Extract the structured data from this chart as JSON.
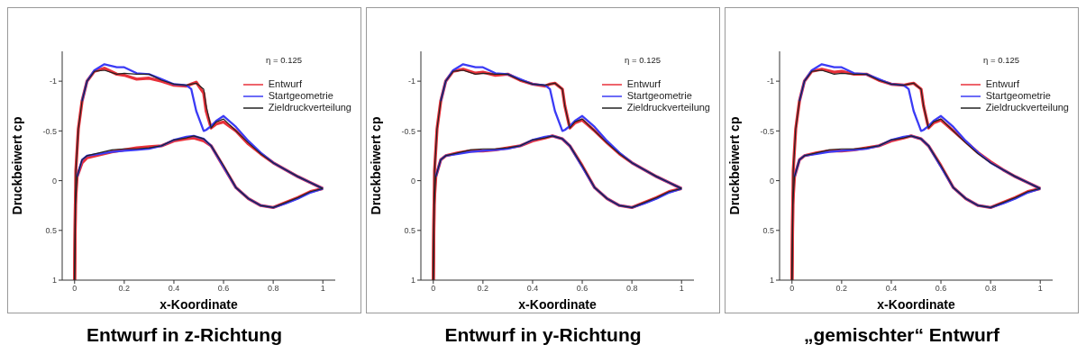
{
  "chart_data": [
    {
      "type": "line",
      "title": "Entwurf in z-Richtung",
      "xlabel": "x-Koordinate",
      "ylabel": "Druckbeiwert cp",
      "annotations": [
        "η = 0.125"
      ],
      "legend": "top right",
      "marker": "none",
      "line_style": "solid",
      "grid": false,
      "xlim": [
        -0.05,
        1.05
      ],
      "ylim": [
        1,
        -1.3
      ],
      "xticks": [
        0,
        0.2,
        0.4,
        0.6,
        0.8,
        1
      ],
      "yticks": [
        1,
        0.5,
        0,
        -0.5,
        -1
      ],
      "series": [
        {
          "name": "Entwurf",
          "color": "#e8313a",
          "x": [
            0,
            0.005,
            0.015,
            0.03,
            0.05,
            0.08,
            0.12,
            0.17,
            0.2,
            0.25,
            0.3,
            0.35,
            0.4,
            0.45,
            0.47,
            0.49,
            0.52,
            0.53,
            0.55,
            0.57,
            0.6,
            0.65,
            0.7,
            0.75,
            0.8,
            0.85,
            0.9,
            0.95,
            1
          ],
          "values": [
            1.0,
            -0.1,
            -0.52,
            -0.8,
            -1.0,
            -1.1,
            -1.13,
            -1.07,
            -1.06,
            -1.02,
            -1.03,
            -1.0,
            -0.96,
            -0.95,
            -0.97,
            -0.99,
            -0.88,
            -0.7,
            -0.53,
            -0.57,
            -0.59,
            -0.5,
            -0.37,
            -0.27,
            -0.18,
            -0.11,
            -0.04,
            0.02,
            0.08
          ]
        },
        {
          "name": "Startgeometrie",
          "color": "#3b3bf5",
          "x": [
            0.03,
            0.05,
            0.08,
            0.12,
            0.17,
            0.2,
            0.25,
            0.3,
            0.35,
            0.4,
            0.45,
            0.47,
            0.49,
            0.52,
            0.53,
            0.55,
            0.57,
            0.6,
            0.65,
            0.7,
            0.75,
            0.8,
            0.85,
            0.9,
            0.95,
            1
          ],
          "values": [
            -0.8,
            -1.0,
            -1.11,
            -1.17,
            -1.14,
            -1.14,
            -1.08,
            -1.07,
            -1.02,
            -0.97,
            -0.96,
            -0.92,
            -0.7,
            -0.5,
            -0.51,
            -0.55,
            -0.6,
            -0.65,
            -0.54,
            -0.4,
            -0.28,
            -0.18,
            -0.11,
            -0.04,
            0.02,
            0.08
          ]
        },
        {
          "name": "Zieldruckverteilung",
          "color": "#222222",
          "x": [
            0,
            0.005,
            0.015,
            0.03,
            0.05,
            0.08,
            0.12,
            0.17,
            0.2,
            0.25,
            0.3,
            0.35,
            0.4,
            0.45,
            0.47,
            0.49,
            0.52,
            0.53,
            0.55,
            0.57,
            0.6,
            0.65,
            0.7,
            0.75,
            0.8,
            0.85,
            0.9,
            0.95,
            1
          ],
          "values": [
            1.0,
            -0.1,
            -0.52,
            -0.8,
            -1.0,
            -1.1,
            -1.11,
            -1.07,
            -1.08,
            -1.07,
            -1.07,
            -1.01,
            -0.97,
            -0.96,
            -0.97,
            -0.98,
            -0.92,
            -0.75,
            -0.53,
            -0.59,
            -0.62,
            -0.5,
            -0.38,
            -0.27,
            -0.18,
            -0.11,
            -0.04,
            0.02,
            0.08
          ]
        },
        {
          "color": "#e8313a",
          "x": [
            0,
            0.003,
            0.01,
            0.03,
            0.05,
            0.1,
            0.15,
            0.2,
            0.25,
            0.3,
            0.35,
            0.4,
            0.45,
            0.48,
            0.52,
            0.55,
            0.6,
            0.65,
            0.7,
            0.75,
            0.8,
            0.85,
            0.9,
            0.95,
            1
          ],
          "values": [
            1.0,
            0.24,
            -0.04,
            -0.18,
            -0.23,
            -0.26,
            -0.29,
            -0.31,
            -0.33,
            -0.34,
            -0.35,
            -0.4,
            -0.42,
            -0.43,
            -0.4,
            -0.35,
            -0.14,
            0.07,
            0.18,
            0.25,
            0.27,
            0.22,
            0.17,
            0.11,
            0.08
          ]
        },
        {
          "color": "#3b3bf5",
          "x": [
            0.01,
            0.03,
            0.05,
            0.1,
            0.15,
            0.2,
            0.25,
            0.3,
            0.35,
            0.4,
            0.45,
            0.48,
            0.52,
            0.55,
            0.6,
            0.65,
            0.7,
            0.75,
            0.8,
            0.85,
            0.9,
            0.95,
            1
          ],
          "values": [
            -0.04,
            -0.21,
            -0.25,
            -0.27,
            -0.29,
            -0.3,
            -0.31,
            -0.32,
            -0.35,
            -0.41,
            -0.44,
            -0.45,
            -0.42,
            -0.35,
            -0.14,
            0.07,
            0.18,
            0.25,
            0.27,
            0.23,
            0.18,
            0.12,
            0.08
          ]
        },
        {
          "color": "#222222",
          "x": [
            0,
            0.003,
            0.01,
            0.03,
            0.05,
            0.1,
            0.15,
            0.2,
            0.25,
            0.3,
            0.35,
            0.4,
            0.45,
            0.48,
            0.52,
            0.55,
            0.6,
            0.65,
            0.7,
            0.75,
            0.8,
            0.85,
            0.9,
            0.95,
            1
          ],
          "values": [
            1.0,
            0.24,
            -0.04,
            -0.21,
            -0.25,
            -0.28,
            -0.31,
            -0.32,
            -0.32,
            -0.33,
            -0.35,
            -0.41,
            -0.43,
            -0.45,
            -0.42,
            -0.35,
            -0.15,
            0.07,
            0.18,
            0.25,
            0.27,
            0.22,
            0.17,
            0.11,
            0.08
          ]
        }
      ]
    },
    {
      "type": "line",
      "title": "Entwurf in y-Richtung",
      "xlabel": "x-Koordinate",
      "ylabel": "Druckbeiwert cp",
      "annotations": [
        "η = 0.125"
      ],
      "legend": "top right",
      "marker": "none",
      "line_style": "solid",
      "grid": false,
      "xlim": [
        -0.05,
        1.05
      ],
      "ylim": [
        1,
        -1.3
      ],
      "xticks": [
        0,
        0.2,
        0.4,
        0.6,
        0.8,
        1
      ],
      "yticks": [
        1,
        0.5,
        0,
        -0.5,
        -1
      ],
      "series": [
        {
          "name": "Entwurf",
          "color": "#e8313a",
          "x": [
            0,
            0.005,
            0.015,
            0.03,
            0.05,
            0.08,
            0.12,
            0.17,
            0.2,
            0.25,
            0.3,
            0.35,
            0.4,
            0.45,
            0.47,
            0.49,
            0.52,
            0.53,
            0.55,
            0.57,
            0.6,
            0.65,
            0.7,
            0.75,
            0.8,
            0.85,
            0.9,
            0.95,
            1
          ],
          "values": [
            1.0,
            -0.1,
            -0.52,
            -0.8,
            -1.0,
            -1.1,
            -1.12,
            -1.08,
            -1.09,
            -1.06,
            -1.07,
            -1.01,
            -0.97,
            -0.95,
            -0.97,
            -0.98,
            -0.92,
            -0.75,
            -0.53,
            -0.58,
            -0.61,
            -0.5,
            -0.38,
            -0.27,
            -0.18,
            -0.11,
            -0.04,
            0.02,
            0.08
          ]
        },
        {
          "name": "Startgeometrie",
          "color": "#3b3bf5",
          "x": [
            0.03,
            0.05,
            0.08,
            0.12,
            0.17,
            0.2,
            0.25,
            0.3,
            0.35,
            0.4,
            0.45,
            0.47,
            0.49,
            0.52,
            0.53,
            0.55,
            0.57,
            0.6,
            0.65,
            0.7,
            0.75,
            0.8,
            0.85,
            0.9,
            0.95,
            1
          ],
          "values": [
            -0.8,
            -1.0,
            -1.11,
            -1.17,
            -1.14,
            -1.14,
            -1.08,
            -1.07,
            -1.02,
            -0.97,
            -0.96,
            -0.92,
            -0.7,
            -0.5,
            -0.51,
            -0.55,
            -0.6,
            -0.65,
            -0.54,
            -0.4,
            -0.28,
            -0.18,
            -0.11,
            -0.04,
            0.02,
            0.08
          ]
        },
        {
          "name": "Zieldruckverteilung",
          "color": "#222222",
          "x": [
            0,
            0.005,
            0.015,
            0.03,
            0.05,
            0.08,
            0.12,
            0.17,
            0.2,
            0.25,
            0.3,
            0.35,
            0.4,
            0.45,
            0.47,
            0.49,
            0.52,
            0.53,
            0.55,
            0.57,
            0.6,
            0.65,
            0.7,
            0.75,
            0.8,
            0.85,
            0.9,
            0.95,
            1
          ],
          "values": [
            1.0,
            -0.1,
            -0.52,
            -0.8,
            -1.0,
            -1.1,
            -1.11,
            -1.07,
            -1.08,
            -1.07,
            -1.07,
            -1.01,
            -0.97,
            -0.96,
            -0.97,
            -0.98,
            -0.92,
            -0.75,
            -0.53,
            -0.59,
            -0.62,
            -0.5,
            -0.38,
            -0.27,
            -0.18,
            -0.11,
            -0.04,
            0.02,
            0.08
          ]
        },
        {
          "color": "#e8313a",
          "x": [
            0,
            0.003,
            0.01,
            0.03,
            0.05,
            0.1,
            0.15,
            0.2,
            0.25,
            0.3,
            0.35,
            0.4,
            0.45,
            0.48,
            0.52,
            0.55,
            0.6,
            0.65,
            0.7,
            0.75,
            0.8,
            0.85,
            0.9,
            0.95,
            1
          ],
          "values": [
            1.0,
            0.24,
            -0.04,
            -0.21,
            -0.25,
            -0.28,
            -0.3,
            -0.3,
            -0.31,
            -0.33,
            -0.35,
            -0.4,
            -0.43,
            -0.45,
            -0.42,
            -0.35,
            -0.15,
            0.07,
            0.18,
            0.25,
            0.27,
            0.22,
            0.17,
            0.11,
            0.08
          ]
        },
        {
          "color": "#3b3bf5",
          "x": [
            0.01,
            0.03,
            0.05,
            0.1,
            0.15,
            0.2,
            0.25,
            0.3,
            0.35,
            0.4,
            0.45,
            0.48,
            0.52,
            0.55,
            0.6,
            0.65,
            0.7,
            0.75,
            0.8,
            0.85,
            0.9,
            0.95,
            1
          ],
          "values": [
            -0.04,
            -0.21,
            -0.25,
            -0.27,
            -0.29,
            -0.3,
            -0.31,
            -0.32,
            -0.35,
            -0.41,
            -0.44,
            -0.45,
            -0.42,
            -0.35,
            -0.14,
            0.07,
            0.18,
            0.25,
            0.27,
            0.23,
            0.18,
            0.12,
            0.08
          ]
        },
        {
          "color": "#222222",
          "x": [
            0,
            0.003,
            0.01,
            0.03,
            0.05,
            0.1,
            0.15,
            0.2,
            0.25,
            0.3,
            0.35,
            0.4,
            0.45,
            0.48,
            0.52,
            0.55,
            0.6,
            0.65,
            0.7,
            0.75,
            0.8,
            0.85,
            0.9,
            0.95,
            1
          ],
          "values": [
            1.0,
            0.24,
            -0.04,
            -0.21,
            -0.25,
            -0.28,
            -0.31,
            -0.32,
            -0.32,
            -0.33,
            -0.35,
            -0.41,
            -0.43,
            -0.45,
            -0.42,
            -0.35,
            -0.15,
            0.07,
            0.18,
            0.25,
            0.27,
            0.22,
            0.17,
            0.11,
            0.08
          ]
        }
      ]
    },
    {
      "type": "line",
      "title": "„gemischter“ Entwurf",
      "xlabel": "x-Koordinate",
      "ylabel": "Druckbeiwert cp",
      "annotations": [
        "η = 0.125"
      ],
      "legend": "top right",
      "marker": "none",
      "line_style": "solid",
      "grid": false,
      "xlim": [
        -0.05,
        1.05
      ],
      "ylim": [
        1,
        -1.3
      ],
      "xticks": [
        0,
        0.2,
        0.4,
        0.6,
        0.8,
        1
      ],
      "yticks": [
        1,
        0.5,
        0,
        -0.5,
        -1
      ],
      "series": [
        {
          "name": "Entwurf",
          "color": "#e8313a",
          "x": [
            0,
            0.005,
            0.015,
            0.03,
            0.05,
            0.08,
            0.12,
            0.17,
            0.2,
            0.25,
            0.3,
            0.35,
            0.4,
            0.45,
            0.47,
            0.49,
            0.52,
            0.53,
            0.55,
            0.57,
            0.6,
            0.65,
            0.7,
            0.75,
            0.8,
            0.85,
            0.9,
            0.95,
            1
          ],
          "values": [
            1.0,
            -0.1,
            -0.52,
            -0.8,
            -1.0,
            -1.1,
            -1.12,
            -1.09,
            -1.1,
            -1.07,
            -1.07,
            -1.01,
            -0.97,
            -0.96,
            -0.97,
            -0.98,
            -0.92,
            -0.75,
            -0.53,
            -0.58,
            -0.61,
            -0.5,
            -0.39,
            -0.28,
            -0.19,
            -0.11,
            -0.04,
            0.02,
            0.08
          ]
        },
        {
          "name": "Startgeometrie",
          "color": "#3b3bf5",
          "x": [
            0.03,
            0.05,
            0.08,
            0.12,
            0.17,
            0.2,
            0.25,
            0.3,
            0.35,
            0.4,
            0.45,
            0.47,
            0.49,
            0.52,
            0.53,
            0.55,
            0.57,
            0.6,
            0.65,
            0.7,
            0.75,
            0.8,
            0.85,
            0.9,
            0.95,
            1
          ],
          "values": [
            -0.8,
            -1.0,
            -1.11,
            -1.17,
            -1.14,
            -1.14,
            -1.08,
            -1.07,
            -1.02,
            -0.97,
            -0.96,
            -0.92,
            -0.7,
            -0.5,
            -0.51,
            -0.55,
            -0.6,
            -0.65,
            -0.54,
            -0.4,
            -0.28,
            -0.18,
            -0.11,
            -0.04,
            0.02,
            0.08
          ]
        },
        {
          "name": "Zieldruckverteilung",
          "color": "#222222",
          "x": [
            0,
            0.005,
            0.015,
            0.03,
            0.05,
            0.08,
            0.12,
            0.17,
            0.2,
            0.25,
            0.3,
            0.35,
            0.4,
            0.45,
            0.47,
            0.49,
            0.52,
            0.53,
            0.55,
            0.57,
            0.6,
            0.65,
            0.7,
            0.75,
            0.8,
            0.85,
            0.9,
            0.95,
            1
          ],
          "values": [
            1.0,
            -0.1,
            -0.52,
            -0.8,
            -1.0,
            -1.1,
            -1.11,
            -1.07,
            -1.08,
            -1.07,
            -1.07,
            -1.01,
            -0.97,
            -0.96,
            -0.97,
            -0.98,
            -0.92,
            -0.75,
            -0.53,
            -0.59,
            -0.62,
            -0.5,
            -0.38,
            -0.27,
            -0.18,
            -0.11,
            -0.04,
            0.02,
            0.08
          ]
        },
        {
          "color": "#e8313a",
          "x": [
            0,
            0.003,
            0.01,
            0.03,
            0.05,
            0.1,
            0.15,
            0.2,
            0.25,
            0.3,
            0.35,
            0.4,
            0.45,
            0.48,
            0.52,
            0.55,
            0.6,
            0.65,
            0.7,
            0.75,
            0.8,
            0.85,
            0.9,
            0.95,
            1
          ],
          "values": [
            1.0,
            0.24,
            -0.04,
            -0.21,
            -0.25,
            -0.28,
            -0.3,
            -0.3,
            -0.31,
            -0.33,
            -0.35,
            -0.4,
            -0.43,
            -0.45,
            -0.42,
            -0.35,
            -0.15,
            0.07,
            0.18,
            0.25,
            0.27,
            0.22,
            0.17,
            0.11,
            0.08
          ]
        },
        {
          "color": "#3b3bf5",
          "x": [
            0.01,
            0.03,
            0.05,
            0.1,
            0.15,
            0.2,
            0.25,
            0.3,
            0.35,
            0.4,
            0.45,
            0.48,
            0.52,
            0.55,
            0.6,
            0.65,
            0.7,
            0.75,
            0.8,
            0.85,
            0.9,
            0.95,
            1
          ],
          "values": [
            -0.04,
            -0.21,
            -0.25,
            -0.27,
            -0.29,
            -0.3,
            -0.31,
            -0.32,
            -0.35,
            -0.41,
            -0.44,
            -0.45,
            -0.42,
            -0.35,
            -0.14,
            0.07,
            0.18,
            0.25,
            0.27,
            0.23,
            0.18,
            0.12,
            0.08
          ]
        },
        {
          "color": "#222222",
          "x": [
            0,
            0.003,
            0.01,
            0.03,
            0.05,
            0.1,
            0.15,
            0.2,
            0.25,
            0.3,
            0.35,
            0.4,
            0.45,
            0.48,
            0.52,
            0.55,
            0.6,
            0.65,
            0.7,
            0.75,
            0.8,
            0.85,
            0.9,
            0.95,
            1
          ],
          "values": [
            1.0,
            0.24,
            -0.04,
            -0.21,
            -0.25,
            -0.28,
            -0.31,
            -0.32,
            -0.32,
            -0.33,
            -0.35,
            -0.41,
            -0.43,
            -0.45,
            -0.42,
            -0.35,
            -0.15,
            0.07,
            0.18,
            0.25,
            0.27,
            0.22,
            0.17,
            0.11,
            0.08
          ]
        }
      ]
    }
  ]
}
